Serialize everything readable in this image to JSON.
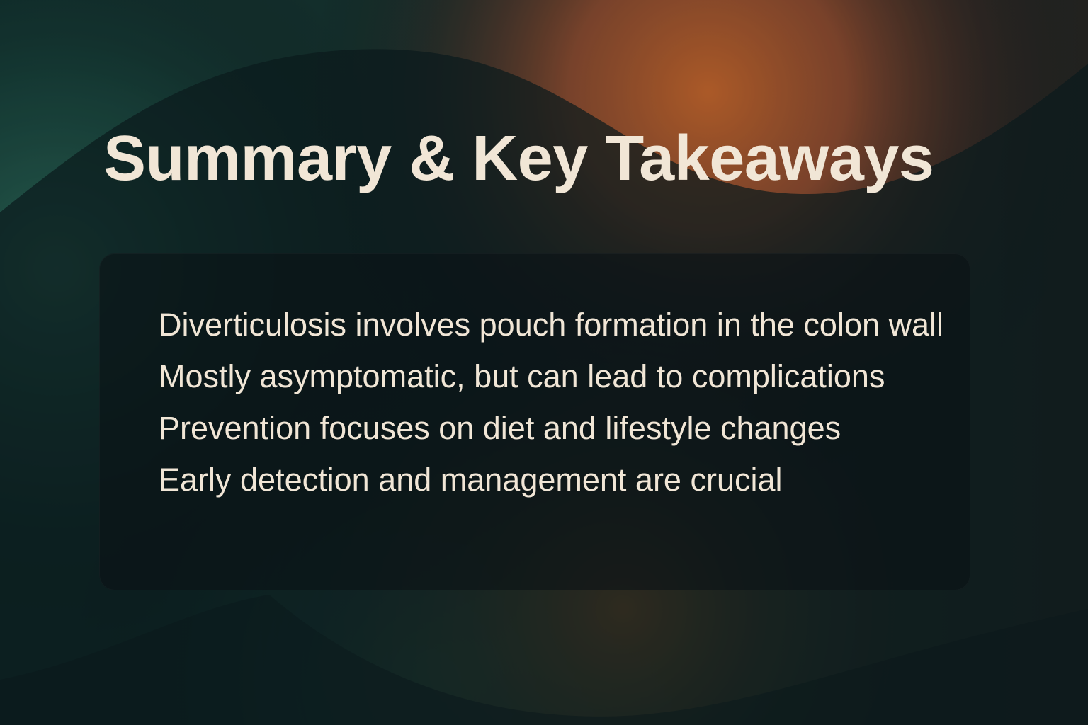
{
  "slide": {
    "title": "Summary & Key Takeaways",
    "takeaways": [
      "Diverticulosis involves pouch formation in the colon wall",
      "Mostly asymptomatic, but can lead to complications",
      "Prevention focuses on diet and lifestyle changes",
      "Early detection and management are crucial"
    ]
  },
  "colors": {
    "background": "#0c1c1c",
    "text": "#f1e6d6",
    "accent_orange": "#c8662c",
    "accent_teal": "#2f6a5a"
  }
}
